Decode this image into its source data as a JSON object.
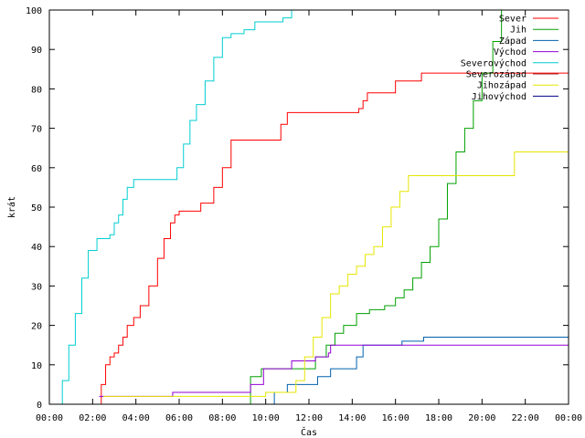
{
  "chart_data": {
    "type": "line",
    "title": "",
    "xlabel": "Čas",
    "ylabel": "krát",
    "xlim": [
      0,
      24
    ],
    "ylim": [
      0,
      100
    ],
    "x_unit": "hours",
    "x_ticks": [
      {
        "value": 0,
        "label": "00:00"
      },
      {
        "value": 2,
        "label": "02:00"
      },
      {
        "value": 4,
        "label": "04:00"
      },
      {
        "value": 6,
        "label": "06:00"
      },
      {
        "value": 8,
        "label": "08:00"
      },
      {
        "value": 10,
        "label": "10:00"
      },
      {
        "value": 12,
        "label": "12:00"
      },
      {
        "value": 14,
        "label": "14:00"
      },
      {
        "value": 16,
        "label": "16:00"
      },
      {
        "value": 18,
        "label": "18:00"
      },
      {
        "value": 20,
        "label": "20:00"
      },
      {
        "value": 22,
        "label": "22:00"
      },
      {
        "value": 24,
        "label": "00:00"
      }
    ],
    "y_ticks": [
      {
        "value": 0,
        "label": "0"
      },
      {
        "value": 10,
        "label": "10"
      },
      {
        "value": 20,
        "label": "20"
      },
      {
        "value": 30,
        "label": "30"
      },
      {
        "value": 40,
        "label": "40"
      },
      {
        "value": 50,
        "label": "50"
      },
      {
        "value": 60,
        "label": "60"
      },
      {
        "value": 70,
        "label": "70"
      },
      {
        "value": 80,
        "label": "80"
      },
      {
        "value": 90,
        "label": "90"
      },
      {
        "value": 100,
        "label": "100"
      }
    ],
    "grid": false,
    "legend_position": "top-right",
    "step": true,
    "series": [
      {
        "name": "Sever",
        "color": "#ff0000",
        "x": [
          2.2,
          2.4,
          2.6,
          2.8,
          3.0,
          3.2,
          3.4,
          3.6,
          3.9,
          4.2,
          4.6,
          5.0,
          5.3,
          5.6,
          5.8,
          6.0,
          7.0,
          7.6,
          8.0,
          8.4,
          9.1,
          10.7,
          11.0,
          14.3,
          14.5,
          14.7,
          16.0,
          17.2,
          24.0
        ],
        "y": [
          0,
          5,
          10,
          12,
          13,
          15,
          17,
          20,
          22,
          25,
          30,
          37,
          42,
          46,
          48,
          49,
          51,
          55,
          60,
          67,
          67,
          71,
          74,
          75,
          77,
          79,
          82,
          84,
          84
        ]
      },
      {
        "name": "Jih",
        "color": "#00a000",
        "x": [
          0.0,
          9.0,
          9.3,
          9.8,
          11.8,
          12.3,
          12.8,
          13.2,
          13.6,
          14.2,
          14.8,
          15.5,
          16.0,
          16.4,
          16.8,
          17.2,
          17.6,
          18.0,
          18.4,
          18.8,
          19.2,
          19.6,
          20.0,
          20.5,
          20.9,
          21.2
        ],
        "y": [
          0,
          0,
          7,
          9,
          9,
          12,
          15,
          18,
          20,
          23,
          24,
          25,
          27,
          29,
          32,
          36,
          40,
          47,
          56,
          64,
          70,
          77,
          84,
          92,
          100,
          100
        ]
      },
      {
        "name": "Západ",
        "color": "#0060ad",
        "x": [
          0.0,
          10.2,
          10.4,
          11.0,
          11.6,
          12.4,
          13.0,
          13.5,
          14.2,
          14.5,
          16.3,
          17.3,
          24.0
        ],
        "y": [
          0,
          0,
          3,
          5,
          5,
          7,
          9,
          9,
          12,
          15,
          16,
          17,
          17
        ]
      },
      {
        "name": "Východ",
        "color": "#9400d3",
        "x": [
          2.3,
          5.7,
          8.8,
          9.3,
          9.9,
          10.5,
          11.2,
          12.3,
          12.9,
          13.0,
          24.0
        ],
        "y": [
          2,
          3,
          3,
          5,
          9,
          9,
          11,
          12,
          13,
          15,
          15
        ]
      },
      {
        "name": "Severovýchod",
        "color": "#00ced1",
        "x": [
          0.3,
          0.6,
          0.9,
          1.2,
          1.5,
          1.8,
          2.2,
          2.6,
          2.8,
          3.0,
          3.2,
          3.4,
          3.6,
          3.9,
          4.3,
          5.6,
          5.9,
          6.2,
          6.5,
          6.8,
          7.2,
          7.6,
          8.0,
          8.4,
          9.0,
          9.5,
          10.3,
          10.8,
          11.2,
          11.4
        ],
        "y": [
          0,
          6,
          15,
          23,
          32,
          39,
          42,
          42,
          43,
          46,
          48,
          52,
          55,
          57,
          57,
          57,
          60,
          66,
          72,
          76,
          82,
          88,
          93,
          94,
          95,
          97,
          97,
          98,
          100,
          100
        ]
      },
      {
        "name": "Severozápad",
        "color": "#a52a2a",
        "x": [],
        "y": []
      },
      {
        "name": "Jihozápad",
        "color": "#e6e600",
        "x": [
          2.5,
          8.8,
          10.0,
          11.4,
          11.8,
          12.2,
          12.6,
          13.0,
          13.4,
          13.8,
          14.2,
          14.6,
          15.0,
          15.4,
          15.8,
          16.2,
          16.6,
          16.8,
          18.0,
          21.2,
          21.5,
          24.0
        ],
        "y": [
          2,
          2,
          3,
          6,
          12,
          17,
          22,
          28,
          30,
          33,
          35,
          38,
          40,
          45,
          50,
          54,
          58,
          58,
          58,
          58,
          64,
          64
        ]
      },
      {
        "name": "Jihovýchod",
        "color": "#00008b",
        "x": [],
        "y": []
      }
    ]
  }
}
